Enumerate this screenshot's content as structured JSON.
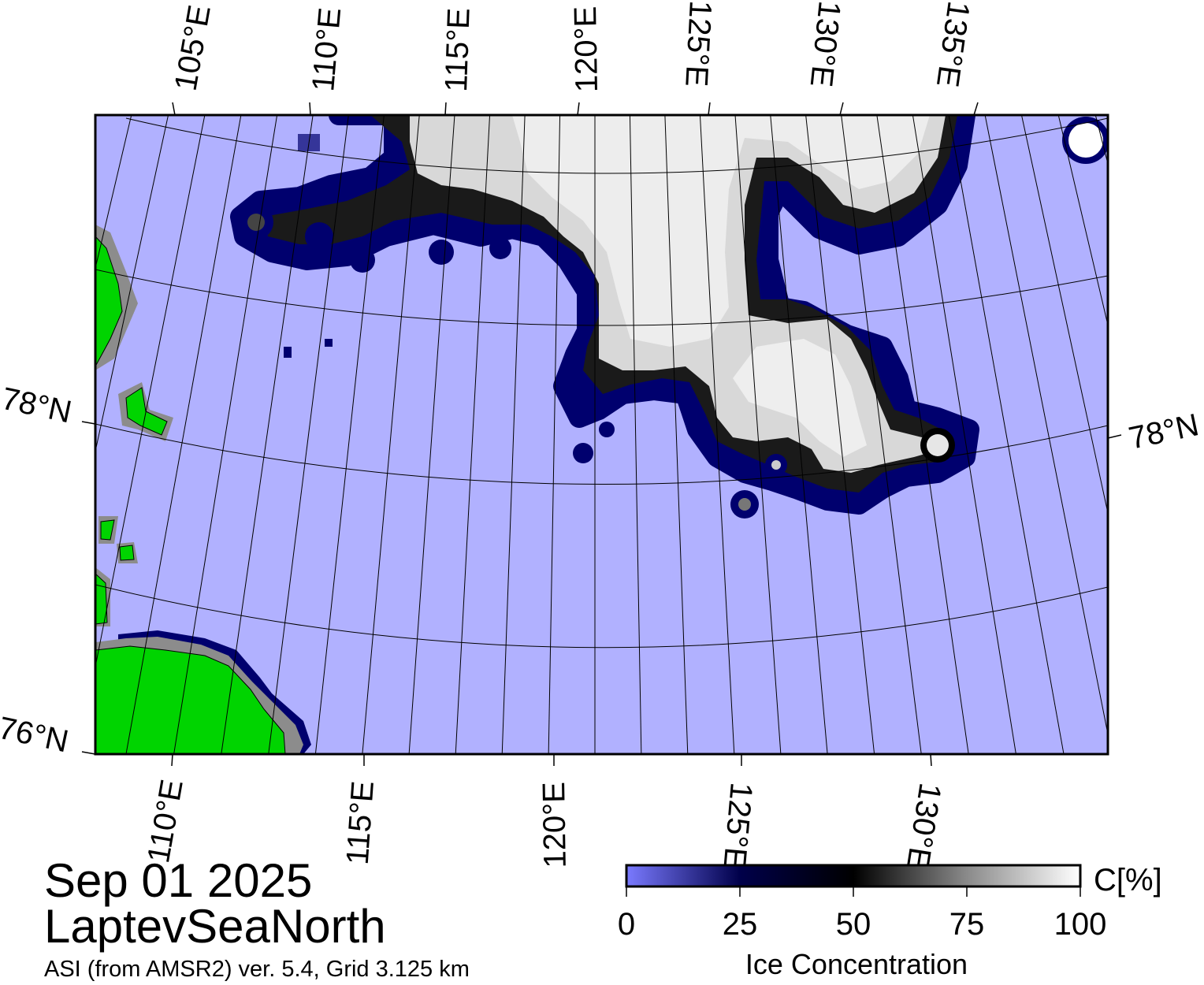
{
  "map": {
    "top_lon_labels": [
      "105°E",
      "110°E",
      "115°E",
      "120°E",
      "125°E",
      "130°E",
      "135°E"
    ],
    "bottom_lon_labels": [
      "110°E",
      "115°E",
      "120°E",
      "125°E",
      "130°E"
    ],
    "lat_labels": {
      "left_upper": "78°N",
      "right": "78°N",
      "left_lower": "76°N"
    },
    "colors": {
      "open_water": "#b1b1ff",
      "land": "#00d400",
      "coast_mask": "#8c8c8c",
      "ice_edge": "#00006e",
      "ice_pack": "#e6e6e6",
      "graticule": "#000000"
    }
  },
  "colorbar": {
    "unit_label": "C[%]",
    "title": "Ice Concentration",
    "ticks": [
      "0",
      "25",
      "50",
      "75",
      "100"
    ],
    "range": [
      0,
      100
    ],
    "stops": [
      "#7a7aff",
      "#00004a",
      "#000000",
      "#8a8a8a",
      "#ffffff"
    ]
  },
  "footer": {
    "date": "Sep 01 2025",
    "region": "LaptevSeaNorth",
    "product": "ASI (from AMSR2) ver. 5.4,  Grid 3.125 km"
  }
}
